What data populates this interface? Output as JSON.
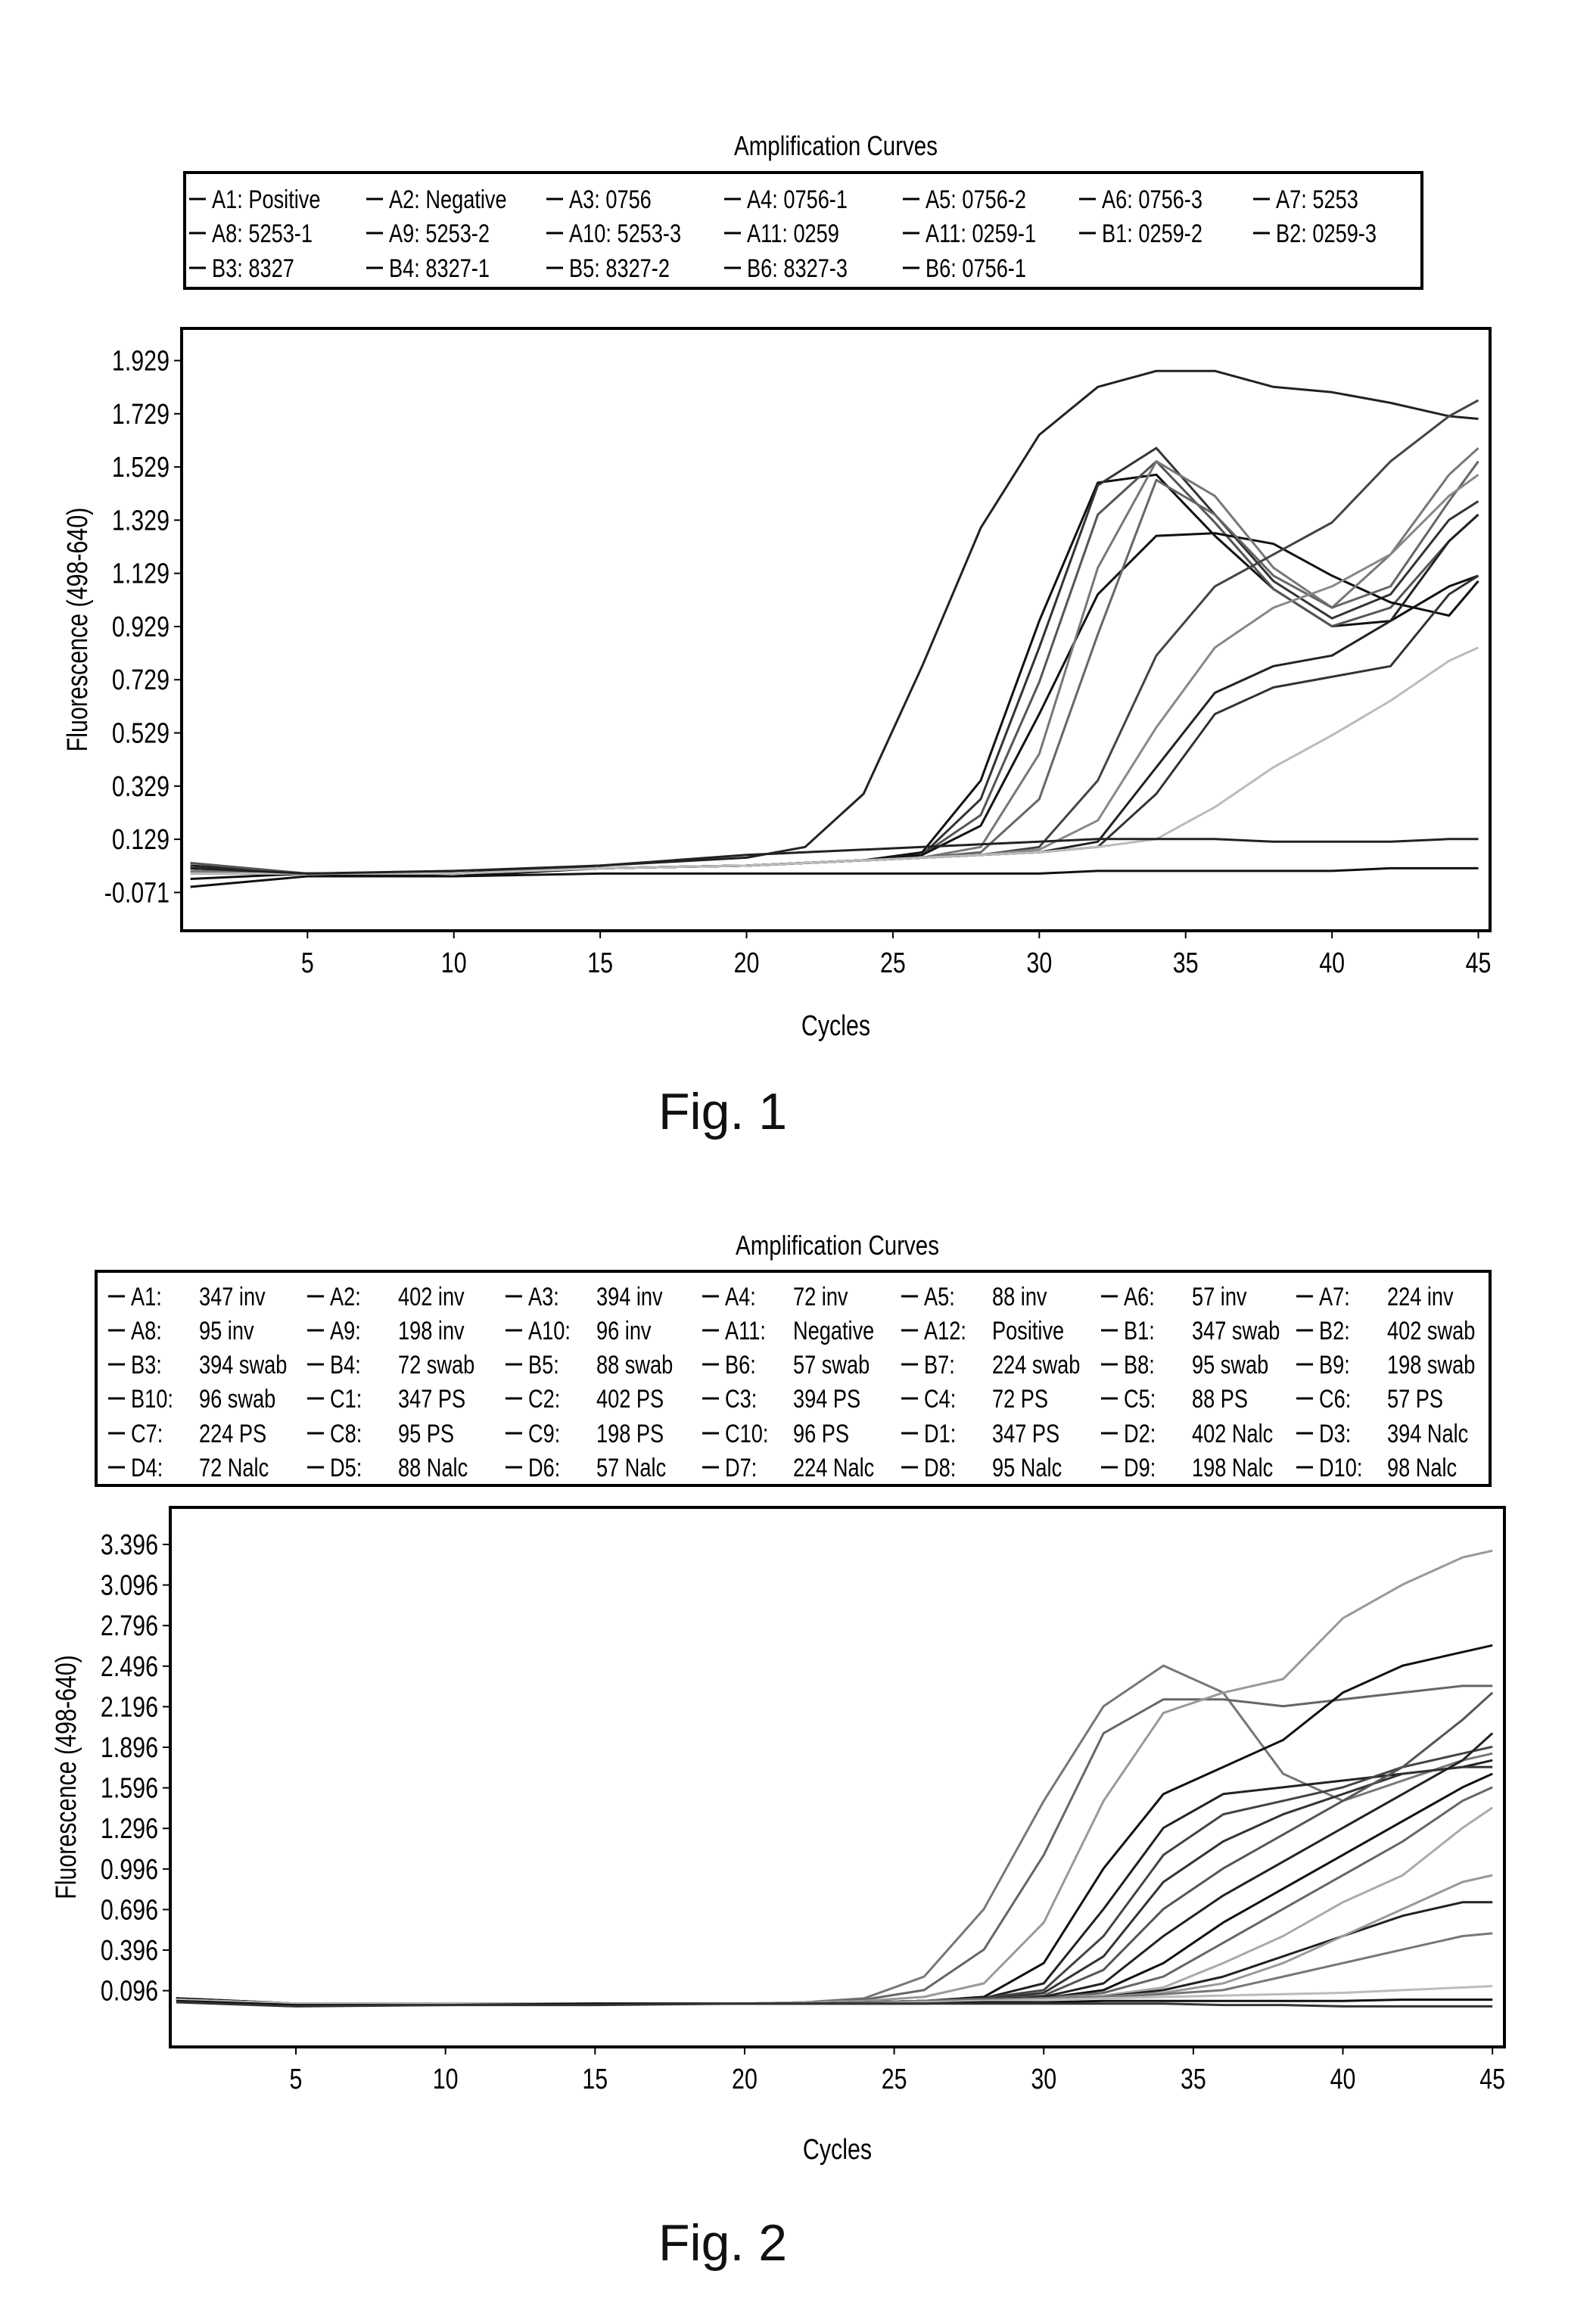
{
  "chart_data": [
    {
      "type": "line",
      "title": "Amplification Curves",
      "xlabel": "Cycles",
      "ylabel": "Fluorescence (498-640)",
      "caption": "Fig. 1",
      "xlim": [
        0.7,
        45.4
      ],
      "ylim": [
        -0.215,
        2.05
      ],
      "xticks": [
        5,
        10,
        15,
        20,
        25,
        30,
        35,
        40,
        45
      ],
      "yticks": [
        "-0.071",
        "0.129",
        "0.329",
        "0.529",
        "0.729",
        "0.929",
        "1.129",
        "1.329",
        "1.529",
        "1.729",
        "1.929"
      ],
      "grid": false,
      "legend_position": "top",
      "legend": [
        "A1: Positive",
        "A2: Negative",
        "A3: 0756",
        "A4: 0756-1",
        "A5: 0756-2",
        "A6: 0756-3",
        "A7: 5253",
        "A8: 5253-1",
        "A9: 5253-2",
        "A10: 5253-3",
        "A11: 0259",
        "A11: 0259-1",
        "B1: 0259-2",
        "B2: 0259-3",
        "B3: 8327",
        "B4: 8327-1",
        "B5: 8327-2",
        "B6: 8327-3",
        "B6: 0756-1"
      ],
      "x": [
        1,
        5,
        10,
        15,
        20,
        22,
        24,
        26,
        28,
        30,
        32,
        34,
        36,
        38,
        40,
        42,
        44,
        45
      ],
      "series": [
        {
          "color": "#222",
          "values": [
            0.03,
            0.0,
            0.0,
            0.03,
            0.06,
            0.1,
            0.3,
            0.78,
            1.3,
            1.65,
            1.83,
            1.89,
            1.89,
            1.83,
            1.81,
            1.77,
            1.72,
            1.71
          ]
        },
        {
          "color": "#111",
          "values": [
            0.02,
            0.0,
            -0.01,
            0.02,
            0.03,
            0.04,
            0.05,
            0.08,
            0.35,
            0.95,
            1.47,
            1.5,
            1.27,
            1.07,
            0.93,
            0.95,
            1.08,
            1.12
          ]
        },
        {
          "color": "#333",
          "values": [
            0.0,
            0.0,
            0.0,
            0.02,
            0.03,
            0.04,
            0.05,
            0.07,
            0.28,
            0.85,
            1.46,
            1.6,
            1.35,
            1.1,
            0.96,
            1.05,
            1.33,
            1.4
          ]
        },
        {
          "color": "#555",
          "values": [
            0.04,
            0.0,
            0.0,
            0.02,
            0.03,
            0.04,
            0.05,
            0.07,
            0.22,
            0.72,
            1.35,
            1.55,
            1.32,
            1.07,
            0.93,
            1.0,
            1.25,
            1.35
          ]
        },
        {
          "color": "#111",
          "values": [
            -0.02,
            0.0,
            0.0,
            0.02,
            0.03,
            0.04,
            0.05,
            0.07,
            0.18,
            0.6,
            1.05,
            1.27,
            1.28,
            1.24,
            1.12,
            1.02,
            0.97,
            1.1
          ]
        },
        {
          "color": "#777",
          "values": [
            0.01,
            0.0,
            0.0,
            0.02,
            0.03,
            0.04,
            0.05,
            0.06,
            0.1,
            0.45,
            1.15,
            1.55,
            1.42,
            1.15,
            1.0,
            1.2,
            1.5,
            1.6
          ]
        },
        {
          "color": "#666",
          "values": [
            0.02,
            0.0,
            0.0,
            0.02,
            0.03,
            0.04,
            0.05,
            0.06,
            0.08,
            0.28,
            0.9,
            1.48,
            1.35,
            1.12,
            1.0,
            1.08,
            1.4,
            1.55
          ]
        },
        {
          "color": "#444",
          "values": [
            0.0,
            0.0,
            0.0,
            0.02,
            0.03,
            0.04,
            0.05,
            0.06,
            0.07,
            0.1,
            0.35,
            0.82,
            1.08,
            1.2,
            1.32,
            1.55,
            1.72,
            1.78
          ]
        },
        {
          "color": "#888",
          "values": [
            0.0,
            0.0,
            0.0,
            0.02,
            0.03,
            0.04,
            0.05,
            0.06,
            0.07,
            0.09,
            0.2,
            0.55,
            0.85,
            1.0,
            1.08,
            1.2,
            1.42,
            1.5
          ]
        },
        {
          "color": "#222",
          "values": [
            0.0,
            0.0,
            0.0,
            0.02,
            0.03,
            0.04,
            0.05,
            0.06,
            0.07,
            0.08,
            0.12,
            0.4,
            0.68,
            0.78,
            0.82,
            0.95,
            1.25,
            1.35
          ]
        },
        {
          "color": "#333",
          "values": [
            0.0,
            0.0,
            0.0,
            0.02,
            0.03,
            0.04,
            0.05,
            0.06,
            0.07,
            0.08,
            0.1,
            0.3,
            0.6,
            0.7,
            0.74,
            0.78,
            1.05,
            1.12
          ]
        },
        {
          "color": "#bbb",
          "values": [
            0.0,
            0.0,
            0.0,
            0.02,
            0.03,
            0.04,
            0.05,
            0.06,
            0.07,
            0.08,
            0.1,
            0.13,
            0.25,
            0.4,
            0.52,
            0.65,
            0.8,
            0.85
          ]
        },
        {
          "color": "#222",
          "values": [
            0.02,
            0.0,
            0.01,
            0.03,
            0.07,
            0.08,
            0.09,
            0.1,
            0.11,
            0.12,
            0.13,
            0.13,
            0.13,
            0.12,
            0.12,
            0.12,
            0.13,
            0.13
          ]
        },
        {
          "color": "#111",
          "values": [
            -0.05,
            -0.01,
            -0.01,
            0.0,
            0.0,
            0.0,
            0.0,
            0.0,
            0.0,
            0.0,
            0.01,
            0.01,
            0.01,
            0.01,
            0.01,
            0.02,
            0.02,
            0.02
          ]
        }
      ]
    },
    {
      "type": "line",
      "title": "Amplification Curves",
      "xlabel": "Cycles",
      "ylabel": "Fluorescence (498-640)",
      "caption": "Fig. 2",
      "xlim": [
        0.8,
        45.4
      ],
      "ylim": [
        -0.32,
        3.67
      ],
      "xticks": [
        5,
        10,
        15,
        20,
        25,
        30,
        35,
        40,
        45
      ],
      "yticks": [
        "0.096",
        "0.396",
        "0.696",
        "0.996",
        "1.296",
        "1.596",
        "1.896",
        "2.196",
        "2.496",
        "2.796",
        "3.096",
        "3.396"
      ],
      "grid": false,
      "legend_position": "top",
      "legend": [
        {
          "id": "A1:",
          "name": "347 inv"
        },
        {
          "id": "A2:",
          "name": "402 inv"
        },
        {
          "id": "A3:",
          "name": "394 inv"
        },
        {
          "id": "A4:",
          "name": "72 inv"
        },
        {
          "id": "A5:",
          "name": "88 inv"
        },
        {
          "id": "A6:",
          "name": "57 inv"
        },
        {
          "id": "A7:",
          "name": "224 inv"
        },
        {
          "id": "A8:",
          "name": "95 inv"
        },
        {
          "id": "A9:",
          "name": "198 inv"
        },
        {
          "id": "A10:",
          "name": "96 inv"
        },
        {
          "id": "A11:",
          "name": "Negative"
        },
        {
          "id": "A12:",
          "name": "Positive"
        },
        {
          "id": "B1:",
          "name": "347 swab"
        },
        {
          "id": "B2:",
          "name": "402 swab"
        },
        {
          "id": "B3:",
          "name": "394 swab"
        },
        {
          "id": "B4:",
          "name": "72 swab"
        },
        {
          "id": "B5:",
          "name": "88 swab"
        },
        {
          "id": "B6:",
          "name": "57 swab"
        },
        {
          "id": "B7:",
          "name": "224 swab"
        },
        {
          "id": "B8:",
          "name": "95 swab"
        },
        {
          "id": "B9:",
          "name": "198 swab"
        },
        {
          "id": "B10:",
          "name": "96 swab"
        },
        {
          "id": "C1:",
          "name": "347 PS"
        },
        {
          "id": "C2:",
          "name": "402 PS"
        },
        {
          "id": "C3:",
          "name": "394 PS"
        },
        {
          "id": "C4:",
          "name": "72 PS"
        },
        {
          "id": "C5:",
          "name": "88 PS"
        },
        {
          "id": "C6:",
          "name": "57 PS"
        },
        {
          "id": "C7:",
          "name": "224 PS"
        },
        {
          "id": "C8:",
          "name": "95 PS"
        },
        {
          "id": "C9:",
          "name": "198 PS"
        },
        {
          "id": "C10:",
          "name": "96 PS"
        },
        {
          "id": "D1:",
          "name": "347 PS"
        },
        {
          "id": "D2:",
          "name": "402 Nalc"
        },
        {
          "id": "D3:",
          "name": "394 Nalc"
        },
        {
          "id": "D4:",
          "name": "72 Nalc"
        },
        {
          "id": "D5:",
          "name": "88 Nalc"
        },
        {
          "id": "D6:",
          "name": "57 Nalc"
        },
        {
          "id": "D7:",
          "name": "224 Nalc"
        },
        {
          "id": "D8:",
          "name": "95 Nalc"
        },
        {
          "id": "D9:",
          "name": "198 Nalc"
        },
        {
          "id": "D10:",
          "name": "98 Nalc"
        }
      ],
      "x": [
        1,
        5,
        10,
        15,
        20,
        22,
        24,
        26,
        28,
        30,
        32,
        34,
        36,
        38,
        40,
        42,
        44,
        45
      ],
      "series": [
        {
          "color": "#777",
          "values": [
            0.04,
            0.0,
            0.0,
            0.0,
            0.0,
            0.01,
            0.04,
            0.2,
            0.7,
            1.5,
            2.2,
            2.5,
            2.3,
            1.7,
            1.5,
            1.65,
            1.8,
            1.85
          ]
        },
        {
          "color": "#666",
          "values": [
            0.04,
            0.0,
            0.0,
            0.0,
            0.0,
            0.01,
            0.03,
            0.1,
            0.4,
            1.1,
            2.0,
            2.25,
            2.25,
            2.2,
            2.25,
            2.3,
            2.35,
            2.35
          ]
        },
        {
          "color": "#999",
          "values": [
            0.04,
            0.0,
            0.0,
            0.0,
            0.0,
            0.01,
            0.02,
            0.05,
            0.15,
            0.6,
            1.5,
            2.15,
            2.3,
            2.4,
            2.85,
            3.1,
            3.3,
            3.35
          ]
        },
        {
          "color": "#111",
          "values": [
            0.04,
            0.0,
            0.0,
            0.0,
            0.0,
            0.0,
            0.01,
            0.02,
            0.05,
            0.3,
            1.0,
            1.55,
            1.75,
            1.95,
            2.3,
            2.5,
            2.6,
            2.65
          ]
        },
        {
          "color": "#222",
          "values": [
            0.03,
            0.0,
            0.0,
            0.0,
            0.0,
            0.0,
            0.01,
            0.02,
            0.04,
            0.15,
            0.7,
            1.3,
            1.55,
            1.6,
            1.65,
            1.7,
            1.75,
            1.8
          ]
        },
        {
          "color": "#444",
          "values": [
            0.03,
            0.0,
            0.0,
            0.0,
            0.0,
            0.0,
            0.01,
            0.02,
            0.04,
            0.1,
            0.5,
            1.1,
            1.4,
            1.5,
            1.6,
            1.75,
            1.85,
            1.9
          ]
        },
        {
          "color": "#333",
          "values": [
            0.03,
            0.0,
            0.0,
            0.0,
            0.0,
            0.0,
            0.01,
            0.02,
            0.03,
            0.08,
            0.35,
            0.9,
            1.2,
            1.4,
            1.55,
            1.7,
            1.75,
            1.75
          ]
        },
        {
          "color": "#555",
          "values": [
            0.03,
            0.0,
            0.0,
            0.0,
            0.0,
            0.0,
            0.01,
            0.02,
            0.03,
            0.06,
            0.25,
            0.7,
            1.0,
            1.25,
            1.5,
            1.75,
            2.1,
            2.3
          ]
        },
        {
          "color": "#222",
          "values": [
            0.03,
            0.0,
            0.0,
            0.0,
            0.0,
            0.0,
            0.01,
            0.02,
            0.03,
            0.05,
            0.15,
            0.5,
            0.8,
            1.05,
            1.3,
            1.55,
            1.8,
            2.0
          ]
        },
        {
          "color": "#111",
          "values": [
            0.03,
            0.0,
            0.0,
            0.0,
            0.0,
            0.0,
            0.01,
            0.02,
            0.03,
            0.04,
            0.1,
            0.3,
            0.6,
            0.85,
            1.1,
            1.35,
            1.6,
            1.7
          ]
        },
        {
          "color": "#666",
          "values": [
            0.03,
            0.0,
            0.0,
            0.0,
            0.0,
            0.0,
            0.01,
            0.02,
            0.03,
            0.04,
            0.08,
            0.2,
            0.45,
            0.7,
            0.95,
            1.2,
            1.5,
            1.6
          ]
        },
        {
          "color": "#aaa",
          "values": [
            0.03,
            0.0,
            0.0,
            0.0,
            0.0,
            0.0,
            0.01,
            0.02,
            0.03,
            0.04,
            0.06,
            0.12,
            0.3,
            0.5,
            0.75,
            0.95,
            1.3,
            1.45
          ]
        },
        {
          "color": "#222",
          "values": [
            0.03,
            0.0,
            0.0,
            0.0,
            0.0,
            0.0,
            0.01,
            0.02,
            0.03,
            0.04,
            0.05,
            0.1,
            0.2,
            0.35,
            0.5,
            0.65,
            0.75,
            0.75
          ]
        },
        {
          "color": "#999",
          "values": [
            0.03,
            0.0,
            0.0,
            0.0,
            0.0,
            0.0,
            0.01,
            0.02,
            0.03,
            0.04,
            0.05,
            0.08,
            0.15,
            0.3,
            0.5,
            0.7,
            0.9,
            0.95
          ]
        },
        {
          "color": "#777",
          "values": [
            0.03,
            0.0,
            0.0,
            0.0,
            0.0,
            0.0,
            0.01,
            0.02,
            0.03,
            0.04,
            0.05,
            0.07,
            0.1,
            0.2,
            0.3,
            0.4,
            0.5,
            0.52
          ]
        },
        {
          "color": "#bbb",
          "values": [
            0.03,
            0.0,
            0.0,
            0.0,
            0.0,
            0.0,
            0.0,
            0.01,
            0.02,
            0.03,
            0.04,
            0.05,
            0.06,
            0.07,
            0.08,
            0.1,
            0.12,
            0.13
          ]
        },
        {
          "color": "#111",
          "values": [
            0.02,
            -0.01,
            -0.01,
            0.0,
            0.0,
            0.0,
            0.0,
            0.0,
            0.01,
            0.01,
            0.02,
            0.02,
            0.02,
            0.02,
            0.02,
            0.03,
            0.03,
            0.03
          ]
        },
        {
          "color": "#333",
          "values": [
            0.01,
            -0.02,
            -0.01,
            -0.01,
            0.0,
            0.0,
            0.0,
            0.0,
            0.0,
            0.0,
            0.0,
            0.0,
            -0.01,
            -0.01,
            -0.02,
            -0.02,
            -0.02,
            -0.02
          ]
        }
      ]
    }
  ]
}
